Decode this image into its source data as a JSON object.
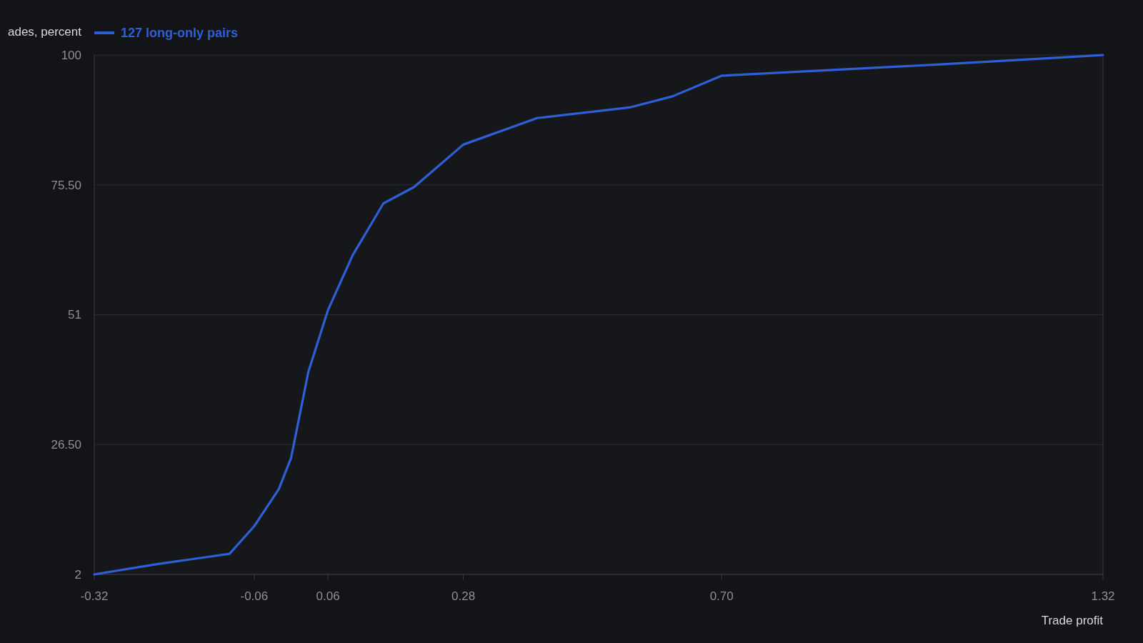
{
  "chart_data": {
    "type": "line",
    "ylabel": "ades, percent",
    "xlabel": "Trade profit",
    "x": [
      -0.32,
      -0.22,
      -0.1,
      -0.06,
      -0.02,
      0.0,
      0.028,
      0.06,
      0.1,
      0.15,
      0.2,
      0.28,
      0.4,
      0.55,
      0.62,
      0.7,
      1.05,
      1.32
    ],
    "series": [
      {
        "name": "127 long-only pairs",
        "color": "#2f5fd6",
        "values": [
          2,
          3.9,
          5.9,
          11.1,
          18.1,
          24,
          40.2,
          51.9,
          62.2,
          72,
          75.1,
          83.1,
          88.1,
          90.1,
          92.2,
          96.1,
          98.2,
          100
        ]
      }
    ],
    "xlim": [
      -0.32,
      1.32
    ],
    "xticks": [
      -0.32,
      -0.06,
      0.06,
      0.28,
      {
        "value": 0.7,
        "label": "0.70"
      },
      1.32
    ],
    "ylim": [
      2,
      100
    ],
    "yticks": [
      2,
      {
        "value": 26.5,
        "label": "26.50"
      },
      51,
      {
        "value": 75.5,
        "label": "75.50"
      },
      100
    ],
    "grid": "y",
    "legend": "top left"
  }
}
